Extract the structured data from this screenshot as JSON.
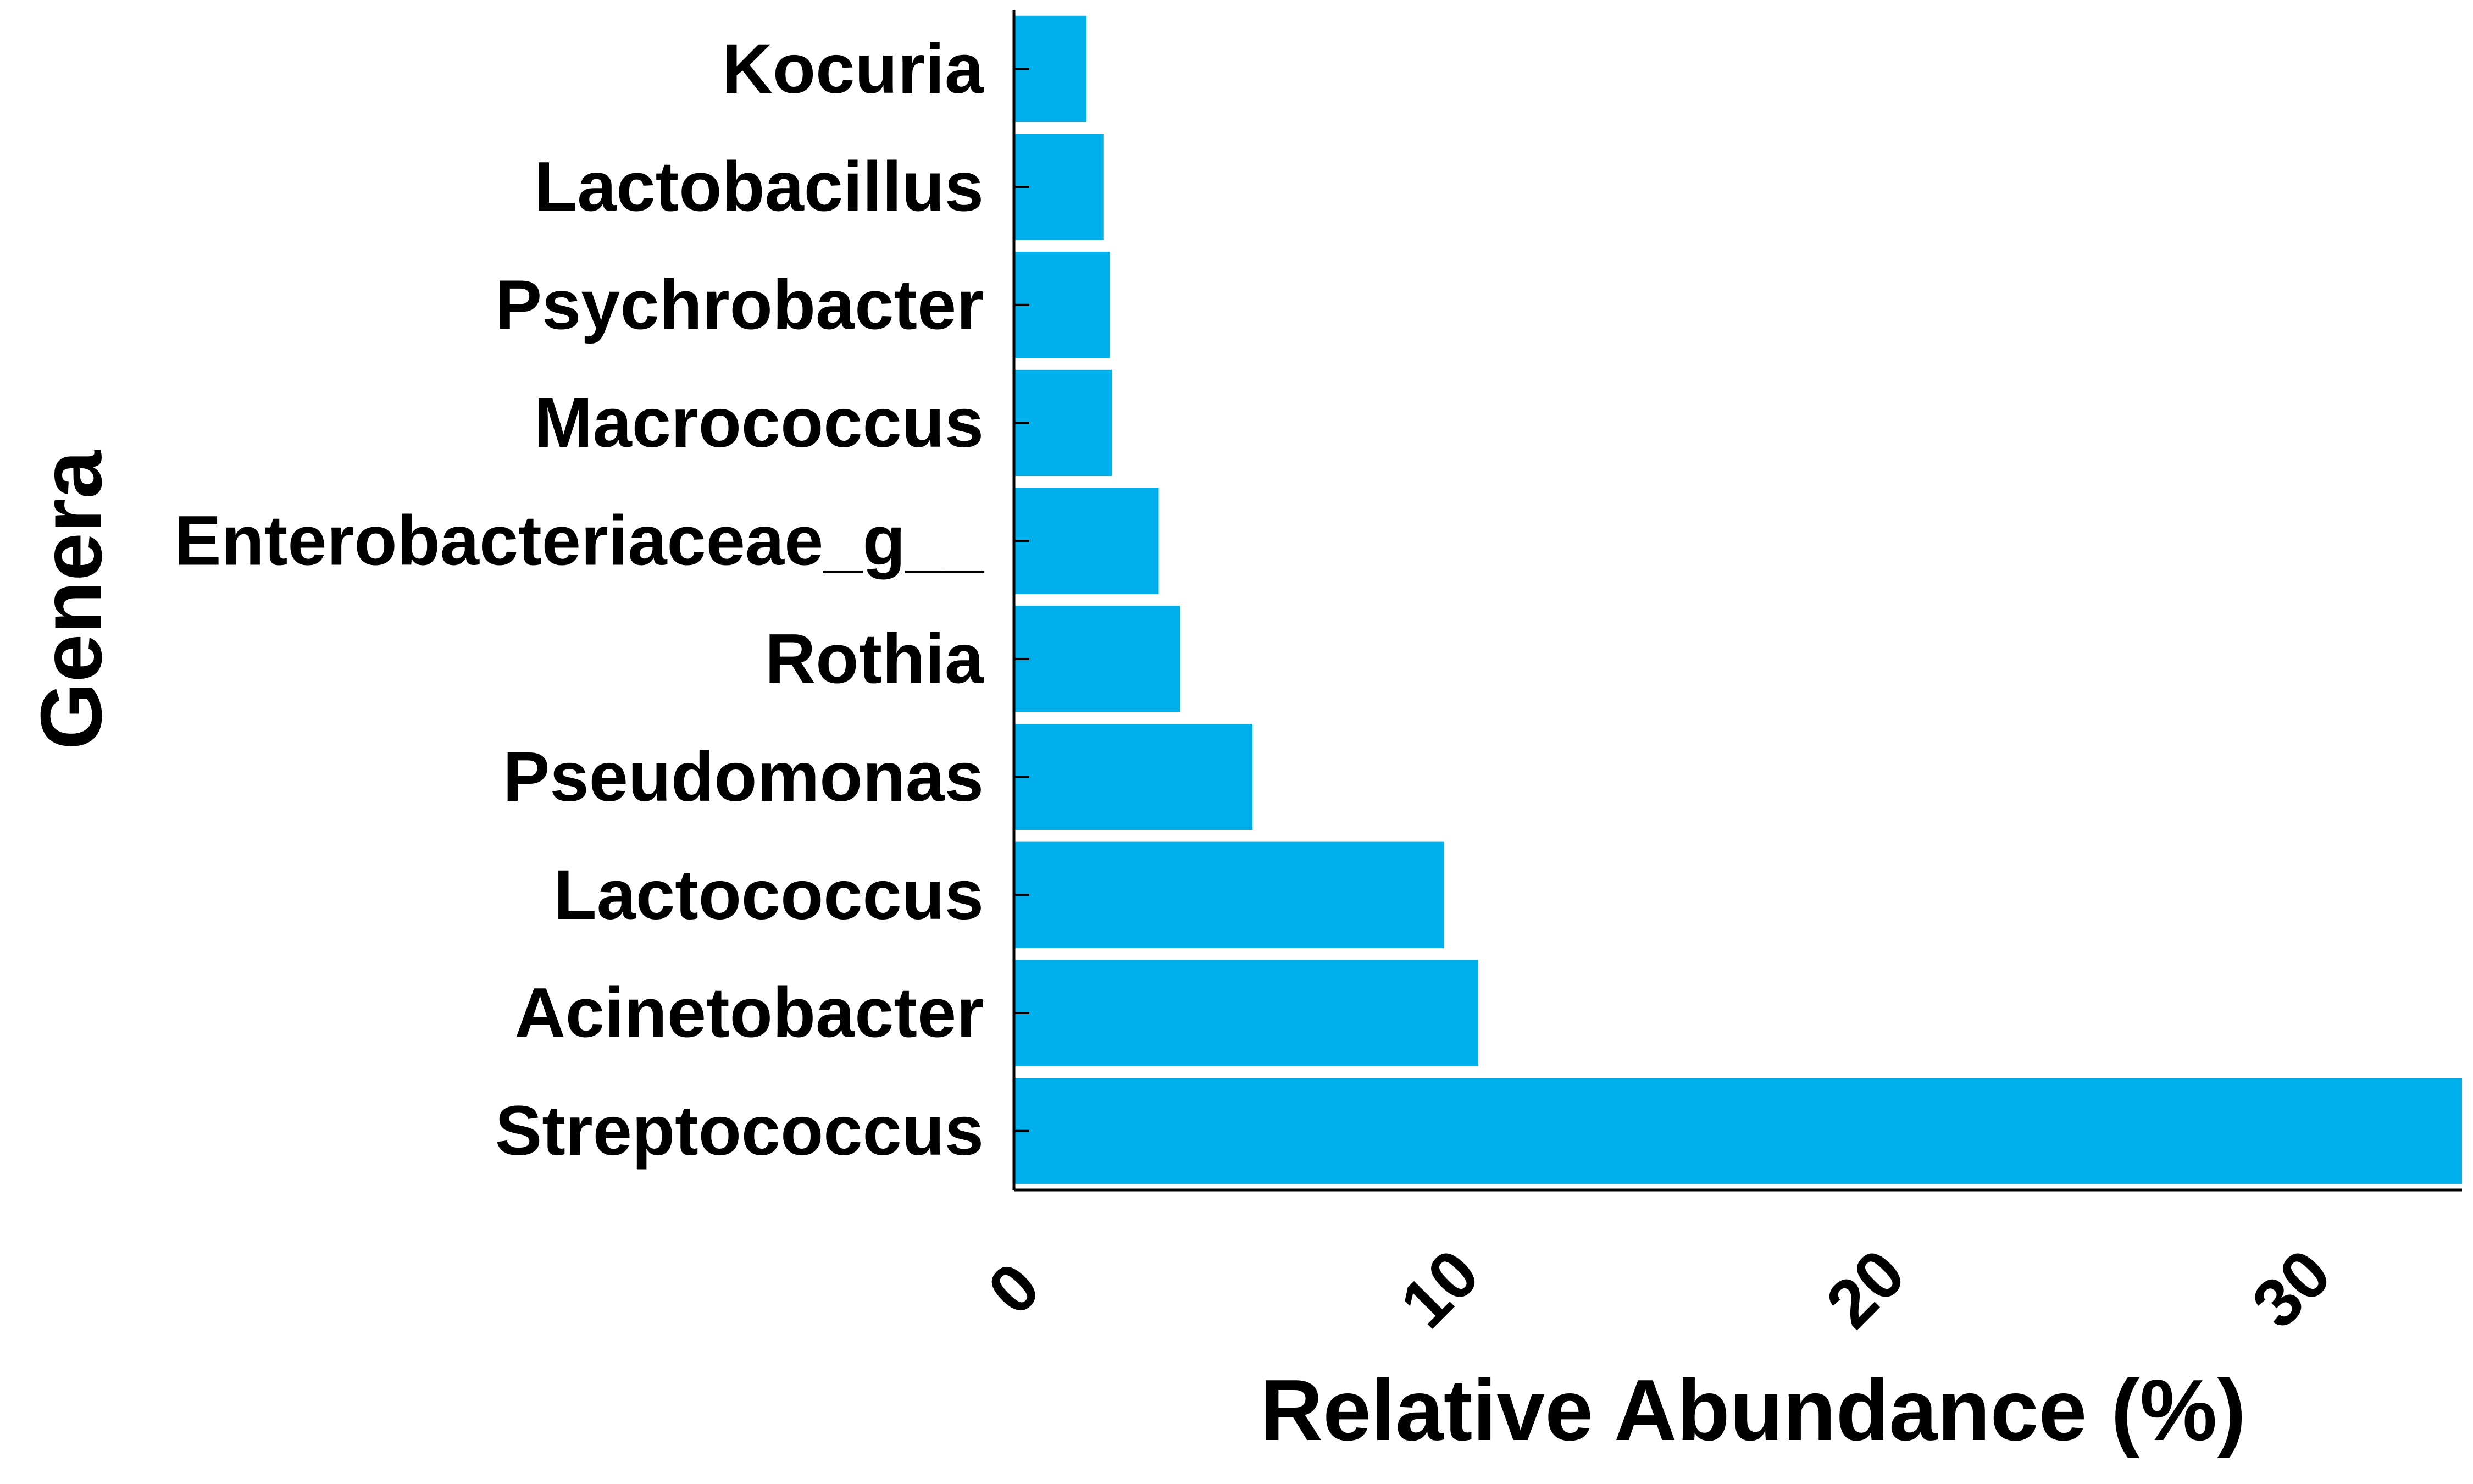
{
  "chart_data": {
    "type": "bar",
    "orientation": "horizontal",
    "categories": [
      "Kocuria",
      "Lactobacillus",
      "Psychrobacter",
      "Macrococcus",
      "Enterobacteriaceae_g__",
      "Rothia",
      "Pseudomonas",
      "Lactococcus",
      "Acinetobacter",
      "Streptococcus"
    ],
    "values": [
      1.7,
      2.1,
      2.25,
      2.3,
      3.4,
      3.9,
      5.6,
      10.1,
      10.9,
      34.0
    ],
    "xlabel": "Relative Abundance (%)",
    "ylabel": "Genera",
    "xlim": [
      0,
      34.0
    ],
    "xticks": [
      0,
      10,
      20,
      30
    ],
    "bar_color": "#00B0EC",
    "grid": false,
    "legend": "none"
  }
}
